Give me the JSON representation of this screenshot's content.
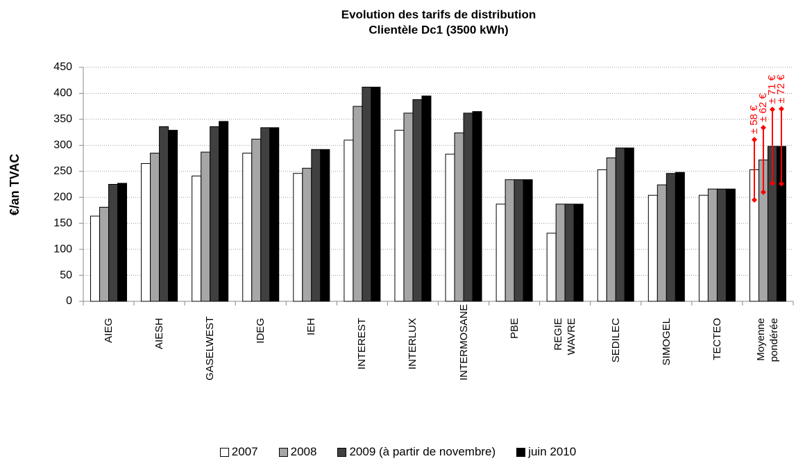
{
  "chart_data": {
    "type": "bar",
    "title": "Evolution des tarifs de distribution",
    "subtitle": "Clientèle Dc1 (3500 kWh)",
    "y_label": "€/an TVAC",
    "categories": [
      "AIEG",
      "AIESH",
      "GASELWEST",
      "IDEG",
      "IEH",
      "INTEREST",
      "INTERLUX",
      "INTERMOSANE",
      "PBE",
      "REGIE WAVRE",
      "SEDILEC",
      "SIMOGEL",
      "TECTEO",
      "Moyenne\npondérée"
    ],
    "series": [
      {
        "name": "2007",
        "color": "#ffffff",
        "values": [
          164,
          265,
          241,
          285,
          246,
          310,
          329,
          283,
          187,
          131,
          253,
          204,
          204,
          253
        ],
        "error": 58,
        "error_label": "± 58 €"
      },
      {
        "name": "2008",
        "color": "#a6a6a6",
        "values": [
          181,
          285,
          287,
          312,
          256,
          375,
          362,
          324,
          234,
          187,
          276,
          224,
          216,
          272
        ],
        "error": 62,
        "error_label": "± 62 €"
      },
      {
        "name": "2009 (à partir de novembre)",
        "color": "#404040",
        "values": [
          225,
          336,
          336,
          334,
          292,
          412,
          388,
          362,
          234,
          187,
          295,
          246,
          216,
          298
        ],
        "error": 71,
        "error_label": "± 71 €"
      },
      {
        "name": "juin 2010",
        "color": "#000000",
        "values": [
          227,
          329,
          346,
          334,
          292,
          412,
          395,
          365,
          234,
          187,
          295,
          248,
          216,
          298
        ],
        "error": 72,
        "error_label": "± 72 €"
      }
    ],
    "error_color": "#ff0000",
    "ylim": [
      0,
      450
    ],
    "yticks": [
      0,
      50,
      100,
      150,
      200,
      250,
      300,
      350,
      400,
      450
    ],
    "grid": true
  }
}
